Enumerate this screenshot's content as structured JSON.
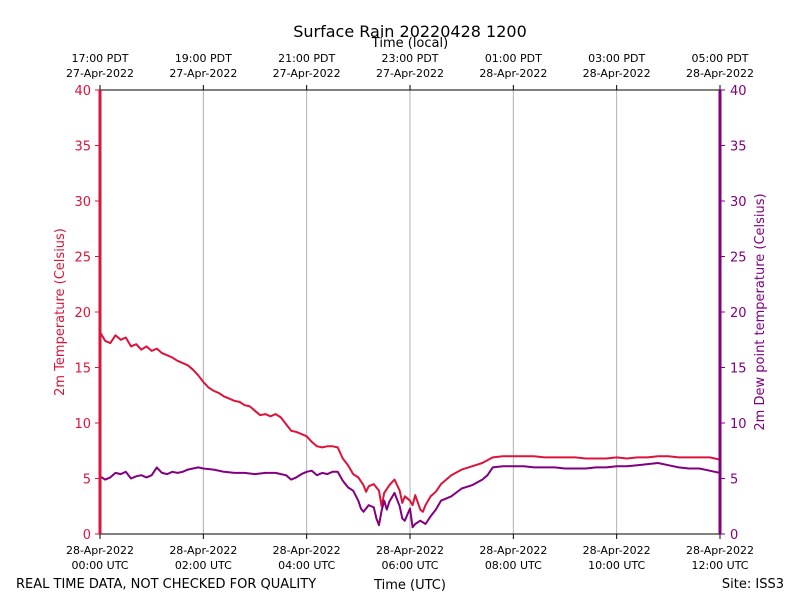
{
  "chart_data": {
    "type": "line",
    "title": "Surface Rain 20220428 1200",
    "top_axis_label": "Time (local)",
    "xlabel": "Time (UTC)",
    "ylabel_left": "2m Temperature (Celsius)",
    "ylabel_right": "2m Dew point temperature (Celsius)",
    "footer_left": "REAL TIME DATA, NOT CHECKED FOR QUALITY",
    "footer_right": "Site: ISS3",
    "xlim_hours_utc": [
      0,
      12
    ],
    "ylim": [
      0,
      40
    ],
    "yticks": [
      "0",
      "5",
      "10",
      "15",
      "20",
      "25",
      "30",
      "35",
      "40"
    ],
    "grid": "vertical",
    "bottom_ticks": [
      {
        "hour": 0,
        "date": "28-Apr-2022",
        "time": "00:00 UTC"
      },
      {
        "hour": 2,
        "date": "28-Apr-2022",
        "time": "02:00 UTC"
      },
      {
        "hour": 4,
        "date": "28-Apr-2022",
        "time": "04:00 UTC"
      },
      {
        "hour": 6,
        "date": "28-Apr-2022",
        "time": "06:00 UTC"
      },
      {
        "hour": 8,
        "date": "28-Apr-2022",
        "time": "08:00 UTC"
      },
      {
        "hour": 10,
        "date": "28-Apr-2022",
        "time": "10:00 UTC"
      },
      {
        "hour": 12,
        "date": "28-Apr-2022",
        "time": "12:00 UTC"
      }
    ],
    "top_ticks": [
      {
        "hour": 0,
        "time": "17:00 PDT",
        "date": "27-Apr-2022"
      },
      {
        "hour": 2,
        "time": "19:00 PDT",
        "date": "27-Apr-2022"
      },
      {
        "hour": 4,
        "time": "21:00 PDT",
        "date": "27-Apr-2022"
      },
      {
        "hour": 6,
        "time": "23:00 PDT",
        "date": "27-Apr-2022"
      },
      {
        "hour": 8,
        "time": "01:00 PDT",
        "date": "28-Apr-2022"
      },
      {
        "hour": 10,
        "time": "03:00 PDT",
        "date": "28-Apr-2022"
      },
      {
        "hour": 12,
        "time": "05:00 PDT",
        "date": "28-Apr-2022"
      }
    ],
    "colors": {
      "temperature": "#dc143c",
      "dewpoint": "#800080",
      "grid": "#b0b0b0",
      "axis": "#000000"
    },
    "series": [
      {
        "name": "2m Temperature",
        "axis": "left",
        "color": "#dc143c",
        "points": [
          [
            0.0,
            18.2
          ],
          [
            0.1,
            17.4
          ],
          [
            0.2,
            17.2
          ],
          [
            0.3,
            17.9
          ],
          [
            0.4,
            17.5
          ],
          [
            0.5,
            17.7
          ],
          [
            0.6,
            16.9
          ],
          [
            0.7,
            17.1
          ],
          [
            0.8,
            16.6
          ],
          [
            0.9,
            16.9
          ],
          [
            1.0,
            16.5
          ],
          [
            1.1,
            16.7
          ],
          [
            1.2,
            16.3
          ],
          [
            1.3,
            16.1
          ],
          [
            1.4,
            15.9
          ],
          [
            1.5,
            15.6
          ],
          [
            1.6,
            15.4
          ],
          [
            1.7,
            15.2
          ],
          [
            1.8,
            14.8
          ],
          [
            1.9,
            14.3
          ],
          [
            2.0,
            13.7
          ],
          [
            2.1,
            13.2
          ],
          [
            2.2,
            12.9
          ],
          [
            2.3,
            12.7
          ],
          [
            2.4,
            12.4
          ],
          [
            2.5,
            12.2
          ],
          [
            2.6,
            12.0
          ],
          [
            2.7,
            11.9
          ],
          [
            2.8,
            11.6
          ],
          [
            2.9,
            11.5
          ],
          [
            3.0,
            11.1
          ],
          [
            3.1,
            10.7
          ],
          [
            3.2,
            10.8
          ],
          [
            3.3,
            10.6
          ],
          [
            3.4,
            10.8
          ],
          [
            3.5,
            10.5
          ],
          [
            3.6,
            9.9
          ],
          [
            3.7,
            9.3
          ],
          [
            3.8,
            9.2
          ],
          [
            3.9,
            9.0
          ],
          [
            4.0,
            8.8
          ],
          [
            4.1,
            8.3
          ],
          [
            4.2,
            7.9
          ],
          [
            4.3,
            7.8
          ],
          [
            4.4,
            7.9
          ],
          [
            4.5,
            7.9
          ],
          [
            4.6,
            7.8
          ],
          [
            4.7,
            6.8
          ],
          [
            4.8,
            6.2
          ],
          [
            4.9,
            5.4
          ],
          [
            5.0,
            5.1
          ],
          [
            5.1,
            4.4
          ],
          [
            5.15,
            3.8
          ],
          [
            5.2,
            4.3
          ],
          [
            5.3,
            4.5
          ],
          [
            5.4,
            3.9
          ],
          [
            5.45,
            2.5
          ],
          [
            5.5,
            3.7
          ],
          [
            5.6,
            4.4
          ],
          [
            5.7,
            4.9
          ],
          [
            5.8,
            3.9
          ],
          [
            5.85,
            2.8
          ],
          [
            5.9,
            3.4
          ],
          [
            6.0,
            3.0
          ],
          [
            6.05,
            2.6
          ],
          [
            6.1,
            3.5
          ],
          [
            6.2,
            2.2
          ],
          [
            6.25,
            2.0
          ],
          [
            6.3,
            2.6
          ],
          [
            6.4,
            3.4
          ],
          [
            6.5,
            3.8
          ],
          [
            6.6,
            4.5
          ],
          [
            6.8,
            5.3
          ],
          [
            7.0,
            5.8
          ],
          [
            7.2,
            6.1
          ],
          [
            7.4,
            6.4
          ],
          [
            7.6,
            6.9
          ],
          [
            7.8,
            7.0
          ],
          [
            8.0,
            7.0
          ],
          [
            8.2,
            7.0
          ],
          [
            8.4,
            7.0
          ],
          [
            8.6,
            6.9
          ],
          [
            8.8,
            6.9
          ],
          [
            9.0,
            6.9
          ],
          [
            9.2,
            6.9
          ],
          [
            9.4,
            6.8
          ],
          [
            9.6,
            6.8
          ],
          [
            9.8,
            6.8
          ],
          [
            10.0,
            6.9
          ],
          [
            10.2,
            6.8
          ],
          [
            10.4,
            6.9
          ],
          [
            10.6,
            6.9
          ],
          [
            10.8,
            7.0
          ],
          [
            11.0,
            7.0
          ],
          [
            11.2,
            6.9
          ],
          [
            11.4,
            6.9
          ],
          [
            11.6,
            6.9
          ],
          [
            11.8,
            6.9
          ],
          [
            11.9,
            6.8
          ],
          [
            12.0,
            6.7
          ]
        ]
      },
      {
        "name": "2m Dew point temperature",
        "axis": "right",
        "color": "#800080",
        "points": [
          [
            0.0,
            5.2
          ],
          [
            0.1,
            4.9
          ],
          [
            0.2,
            5.1
          ],
          [
            0.3,
            5.5
          ],
          [
            0.4,
            5.4
          ],
          [
            0.5,
            5.6
          ],
          [
            0.6,
            5.0
          ],
          [
            0.7,
            5.2
          ],
          [
            0.8,
            5.3
          ],
          [
            0.9,
            5.1
          ],
          [
            1.0,
            5.3
          ],
          [
            1.1,
            6.0
          ],
          [
            1.2,
            5.5
          ],
          [
            1.3,
            5.4
          ],
          [
            1.4,
            5.6
          ],
          [
            1.5,
            5.5
          ],
          [
            1.6,
            5.6
          ],
          [
            1.7,
            5.8
          ],
          [
            1.8,
            5.9
          ],
          [
            1.9,
            6.0
          ],
          [
            2.0,
            5.9
          ],
          [
            2.2,
            5.8
          ],
          [
            2.4,
            5.6
          ],
          [
            2.6,
            5.5
          ],
          [
            2.8,
            5.5
          ],
          [
            3.0,
            5.4
          ],
          [
            3.2,
            5.5
          ],
          [
            3.4,
            5.5
          ],
          [
            3.5,
            5.4
          ],
          [
            3.6,
            5.3
          ],
          [
            3.7,
            4.9
          ],
          [
            3.8,
            5.1
          ],
          [
            3.9,
            5.4
          ],
          [
            4.0,
            5.6
          ],
          [
            4.1,
            5.7
          ],
          [
            4.2,
            5.3
          ],
          [
            4.3,
            5.5
          ],
          [
            4.4,
            5.4
          ],
          [
            4.5,
            5.6
          ],
          [
            4.6,
            5.6
          ],
          [
            4.7,
            4.8
          ],
          [
            4.8,
            4.2
          ],
          [
            4.9,
            3.9
          ],
          [
            5.0,
            3.0
          ],
          [
            5.05,
            2.3
          ],
          [
            5.1,
            2.0
          ],
          [
            5.2,
            2.6
          ],
          [
            5.3,
            2.4
          ],
          [
            5.35,
            1.4
          ],
          [
            5.4,
            0.8
          ],
          [
            5.45,
            2.1
          ],
          [
            5.5,
            3.0
          ],
          [
            5.55,
            2.2
          ],
          [
            5.6,
            2.9
          ],
          [
            5.7,
            3.7
          ],
          [
            5.8,
            2.5
          ],
          [
            5.85,
            1.4
          ],
          [
            5.9,
            1.2
          ],
          [
            6.0,
            2.3
          ],
          [
            6.05,
            0.6
          ],
          [
            6.1,
            0.9
          ],
          [
            6.2,
            1.2
          ],
          [
            6.3,
            0.9
          ],
          [
            6.4,
            1.6
          ],
          [
            6.5,
            2.2
          ],
          [
            6.6,
            3.0
          ],
          [
            6.8,
            3.4
          ],
          [
            7.0,
            4.1
          ],
          [
            7.2,
            4.4
          ],
          [
            7.4,
            4.9
          ],
          [
            7.5,
            5.3
          ],
          [
            7.6,
            6.0
          ],
          [
            7.8,
            6.1
          ],
          [
            8.0,
            6.1
          ],
          [
            8.2,
            6.1
          ],
          [
            8.4,
            6.0
          ],
          [
            8.6,
            6.0
          ],
          [
            8.8,
            6.0
          ],
          [
            9.0,
            5.9
          ],
          [
            9.2,
            5.9
          ],
          [
            9.4,
            5.9
          ],
          [
            9.6,
            6.0
          ],
          [
            9.8,
            6.0
          ],
          [
            10.0,
            6.1
          ],
          [
            10.2,
            6.1
          ],
          [
            10.4,
            6.2
          ],
          [
            10.6,
            6.3
          ],
          [
            10.8,
            6.4
          ],
          [
            11.0,
            6.2
          ],
          [
            11.2,
            6.0
          ],
          [
            11.4,
            5.9
          ],
          [
            11.6,
            5.9
          ],
          [
            11.8,
            5.7
          ],
          [
            11.9,
            5.6
          ],
          [
            12.0,
            5.5
          ]
        ]
      }
    ]
  }
}
